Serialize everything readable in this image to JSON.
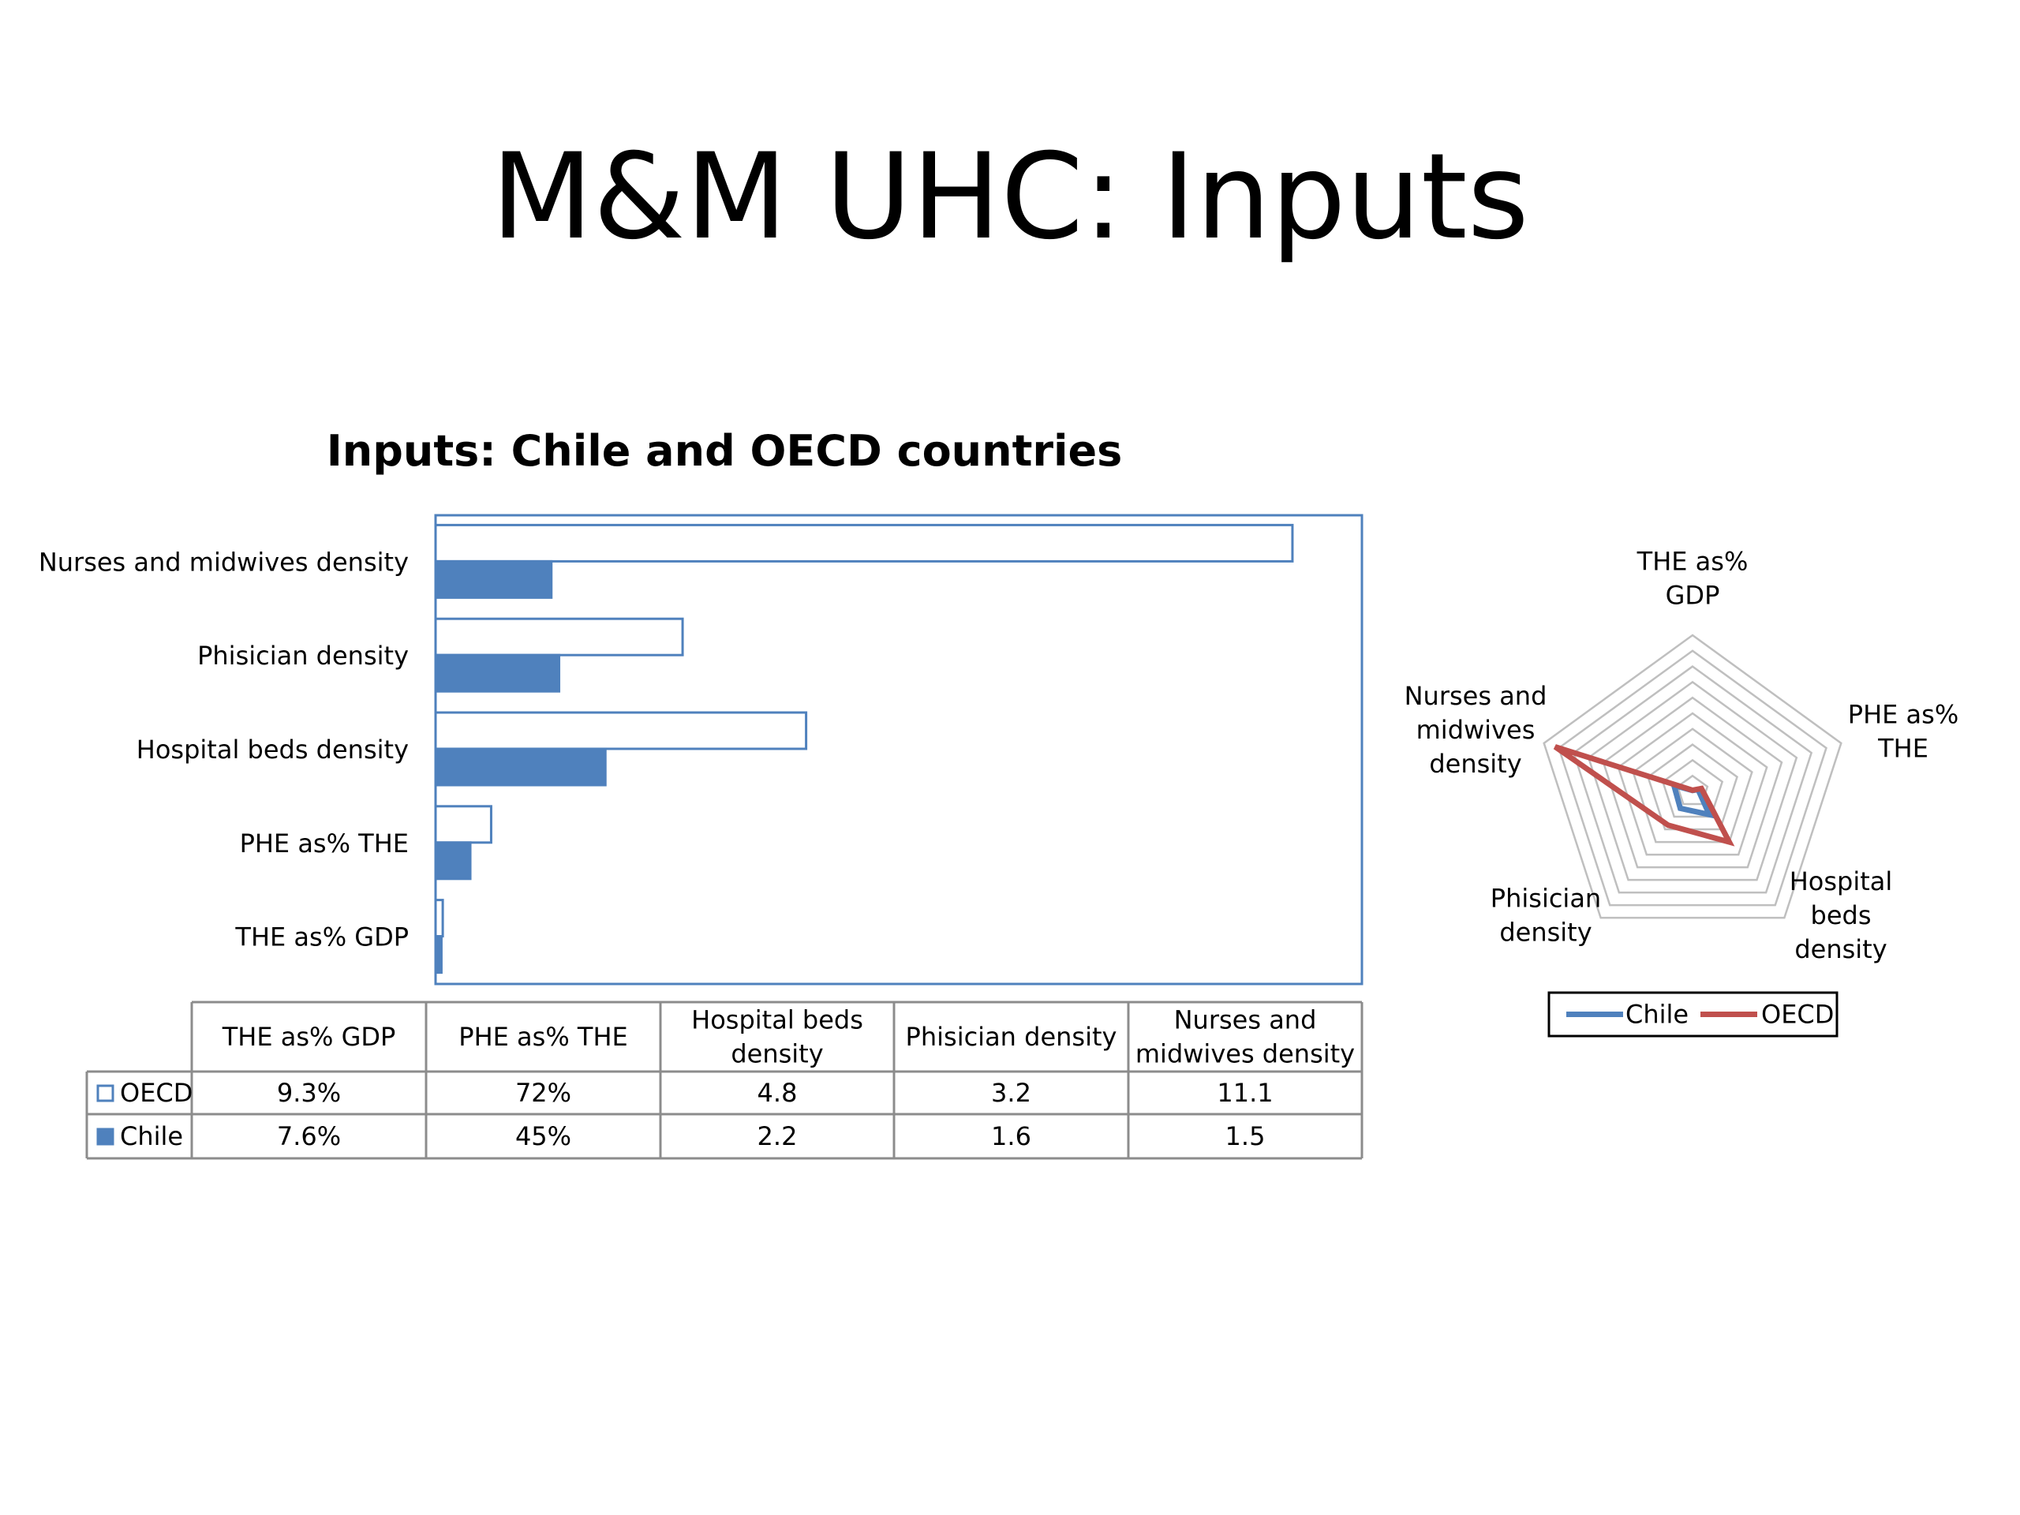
{
  "slide": {
    "title": "M&M UHC: Inputs"
  },
  "chart_data": [
    {
      "type": "bar",
      "orientation": "horizontal",
      "title": "Inputs: Chile and OECD countries",
      "categories": [
        "THE as% GDP",
        "PHE as% THE",
        "Hospital beds density",
        "Phisician density",
        "Nurses and midwives density"
      ],
      "table_headers": [
        "THE as% GDP",
        "PHE as% THE",
        "Hospital beds\ndensity",
        "Phisician density",
        "Nurses and\nmidwives density"
      ],
      "series": [
        {
          "name": "OECD",
          "values": [
            0.093,
            0.72,
            4.8,
            3.2,
            11.1
          ],
          "labels": [
            "9.3%",
            "72%",
            "4.8",
            "3.2",
            "11.1"
          ],
          "color": "#ffffff",
          "stroke": "#4f81bd"
        },
        {
          "name": "Chile",
          "values": [
            0.076,
            0.45,
            2.2,
            1.6,
            1.5
          ],
          "labels": [
            "7.6%",
            "45%",
            "2.2",
            "1.6",
            "1.5"
          ],
          "color": "#4f81bd",
          "stroke": "#4f81bd"
        }
      ],
      "xlim": [
        0,
        12
      ],
      "legend": "data-table",
      "grid": false
    },
    {
      "type": "radar",
      "axes": [
        "THE as%\nGDP",
        "PHE as%\nTHE",
        "Hospital\nbeds\ndensity",
        "Phisician\ndensity",
        "Nurses and\nmidwives\ndensity"
      ],
      "rlim": [
        0,
        12
      ],
      "rings": 10,
      "series": [
        {
          "name": "Chile",
          "values": [
            0.076,
            0.45,
            2.2,
            1.6,
            1.5
          ],
          "color": "#4f81bd"
        },
        {
          "name": "OECD",
          "values": [
            0.093,
            0.72,
            4.8,
            3.2,
            11.1
          ],
          "color": "#c0504d"
        }
      ],
      "legend": "bottom"
    }
  ]
}
